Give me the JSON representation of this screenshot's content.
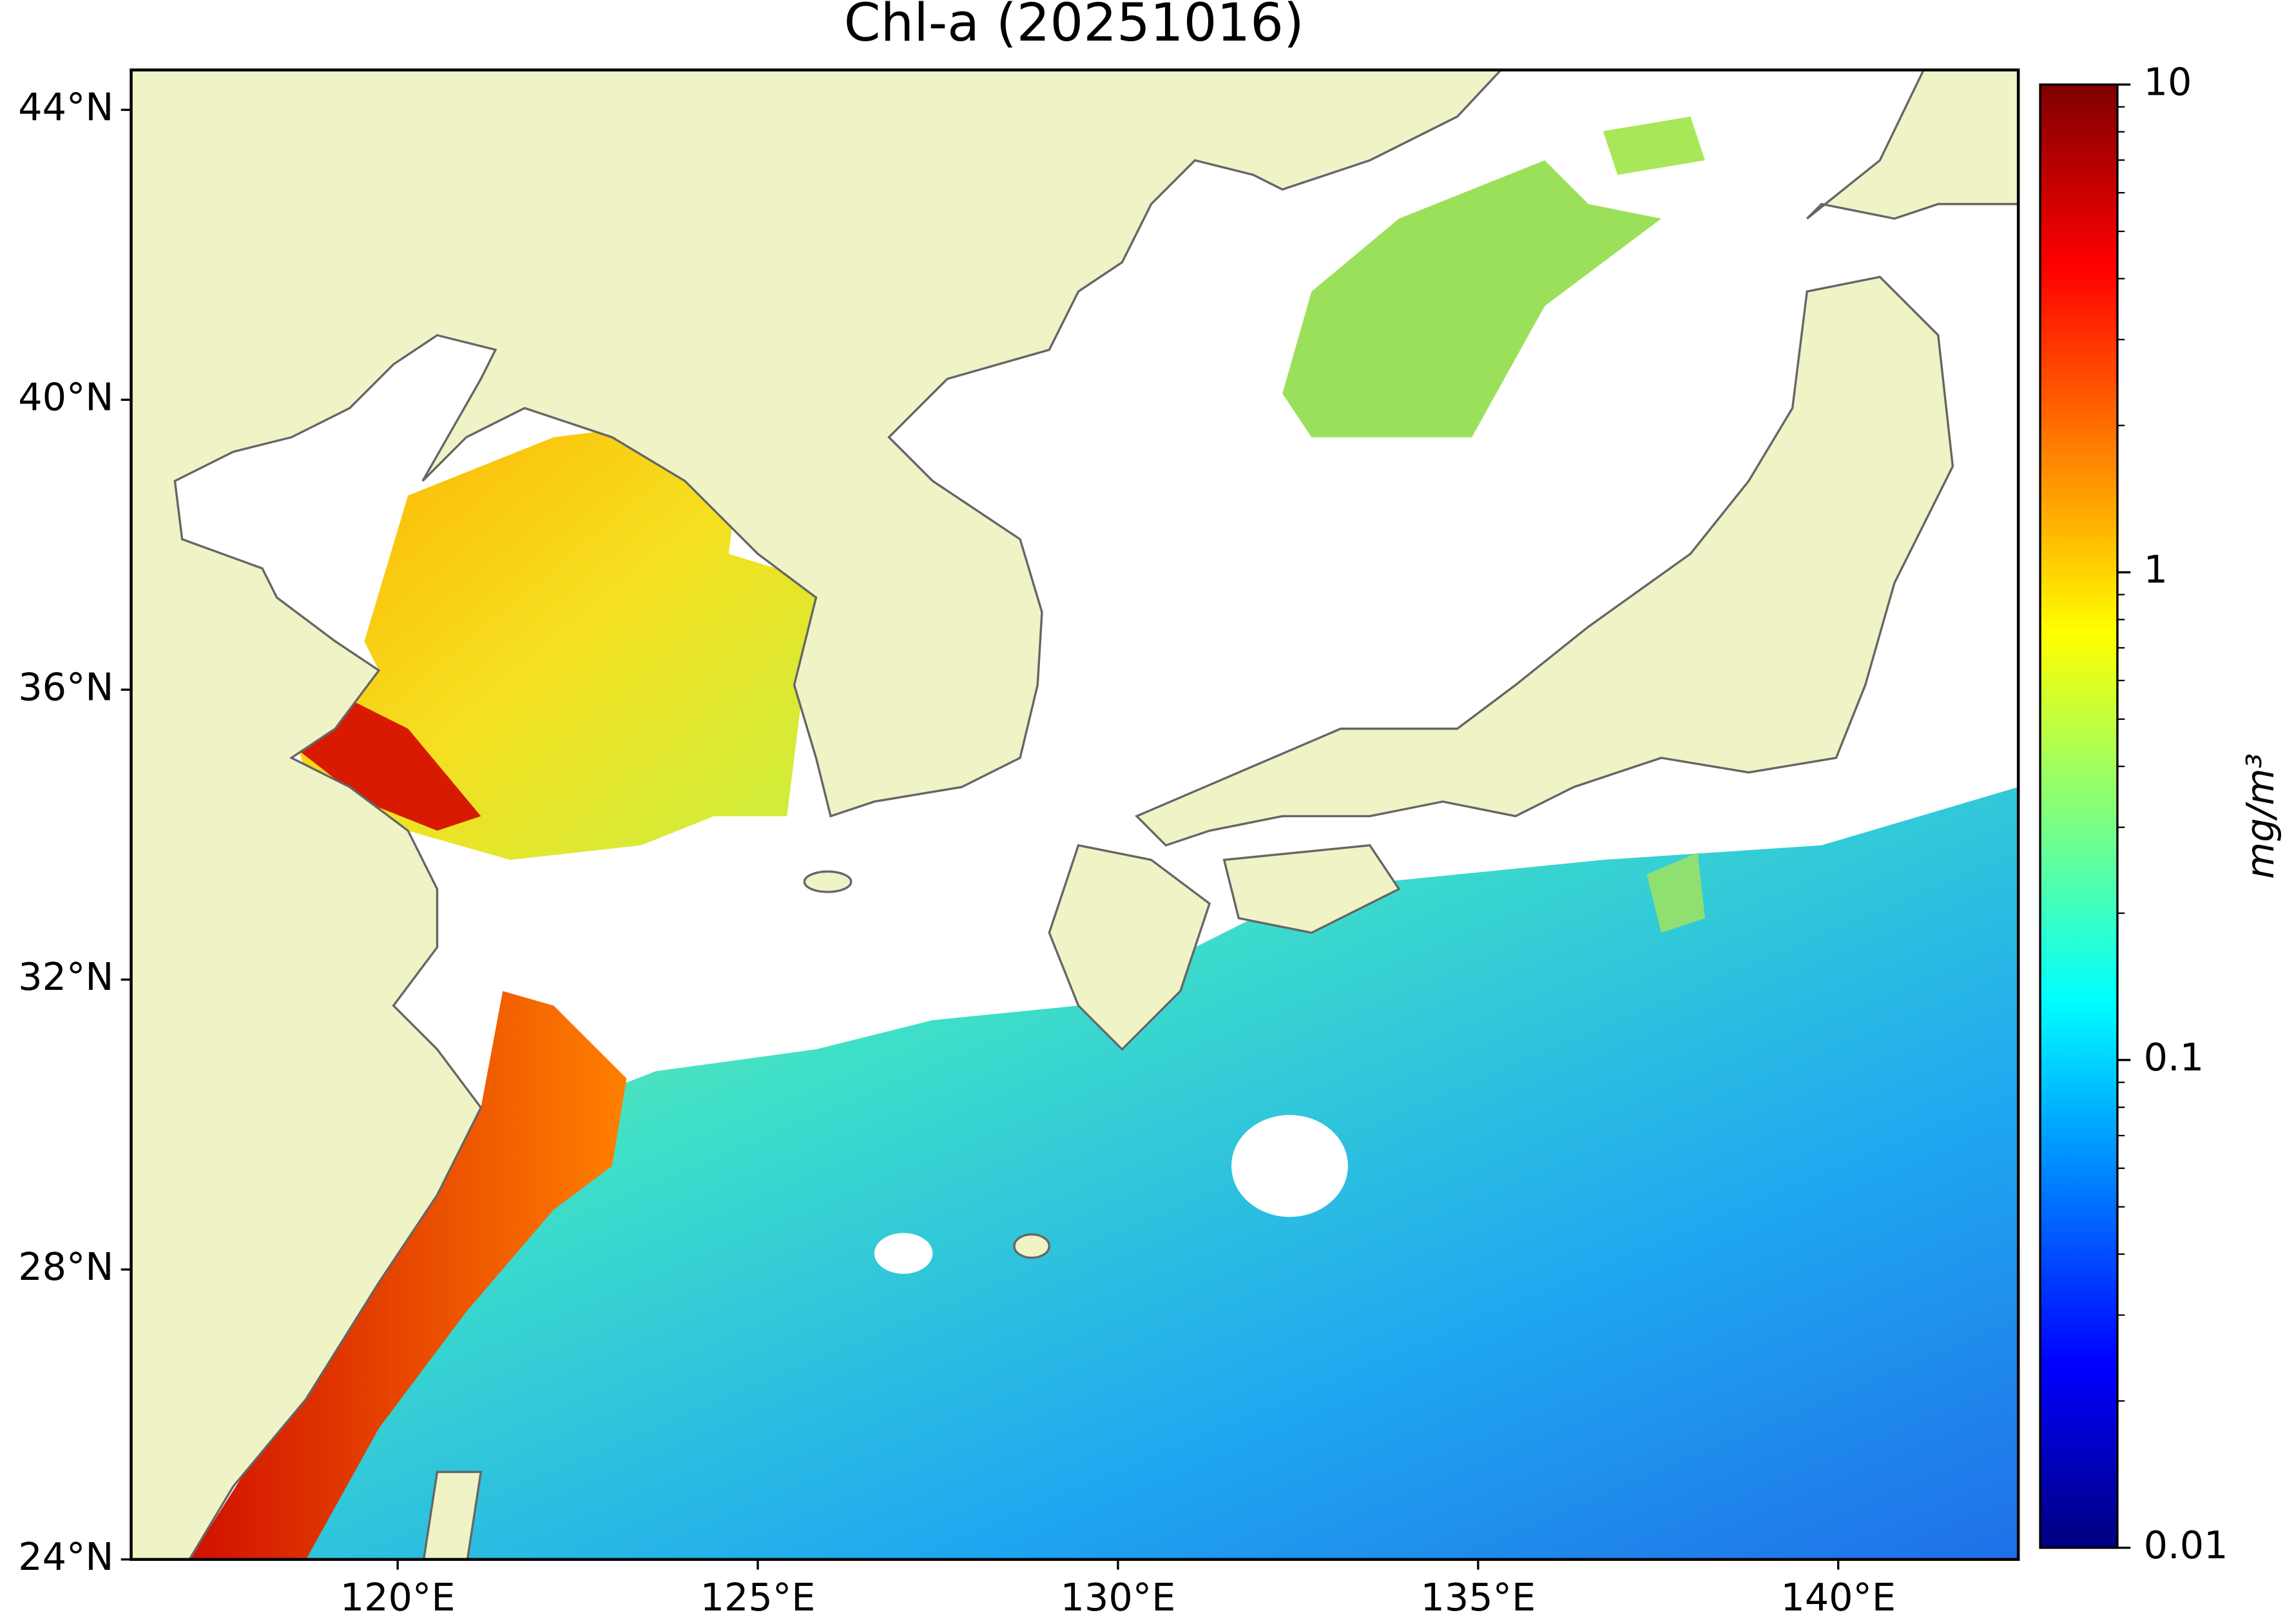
{
  "chart_data": {
    "type": "map",
    "title": "Chl-a (20251016)",
    "xlim": [
      116.3,
      142.5
    ],
    "xticks": [
      {
        "value": 120,
        "label": "120°E"
      },
      {
        "value": 125,
        "label": "125°E"
      },
      {
        "value": 130,
        "label": "130°E"
      },
      {
        "value": 135,
        "label": "135°E"
      },
      {
        "value": 140,
        "label": "140°E"
      }
    ],
    "ylim": [
      24,
      44.55
    ],
    "yticks": [
      {
        "value": 24,
        "label": "24°N"
      },
      {
        "value": 28,
        "label": "28°N"
      },
      {
        "value": 32,
        "label": "32°N"
      },
      {
        "value": 36,
        "label": "36°N"
      },
      {
        "value": 40,
        "label": "40°N"
      },
      {
        "value": 44,
        "label": "44°N"
      }
    ],
    "colorbar": {
      "label": "mg/m³",
      "scale": "log",
      "colormap": "jet",
      "lim": [
        0.01,
        10
      ],
      "ticks": [
        0.01,
        0.1,
        1,
        10
      ]
    }
  }
}
